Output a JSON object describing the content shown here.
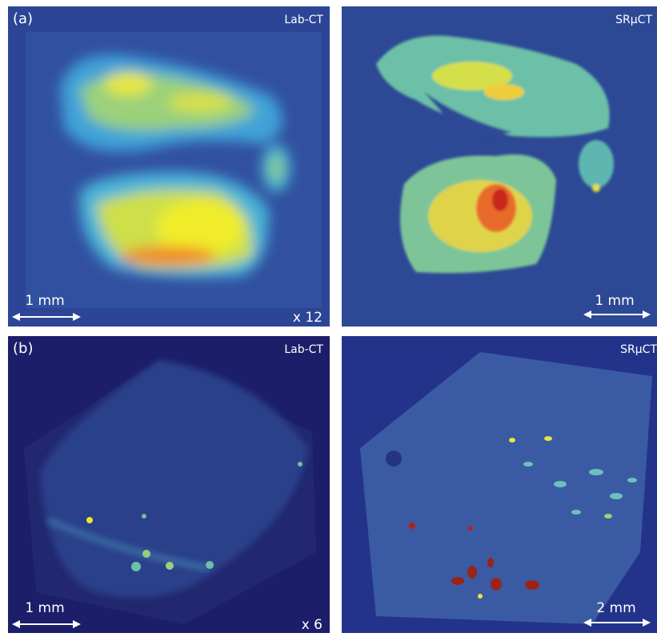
{
  "panels": [
    {
      "label": "(a)",
      "method": "Lab-CT",
      "scale_bar": "1 mm",
      "magnification": "x 12"
    },
    {
      "method": "SRμCT",
      "scale_bar": "1 mm"
    },
    {
      "label": "(b)",
      "method": "Lab-CT",
      "scale_bar": "1 mm",
      "magnification": "x 6"
    },
    {
      "method": "SRμCT",
      "scale_bar": "2 mm"
    }
  ]
}
